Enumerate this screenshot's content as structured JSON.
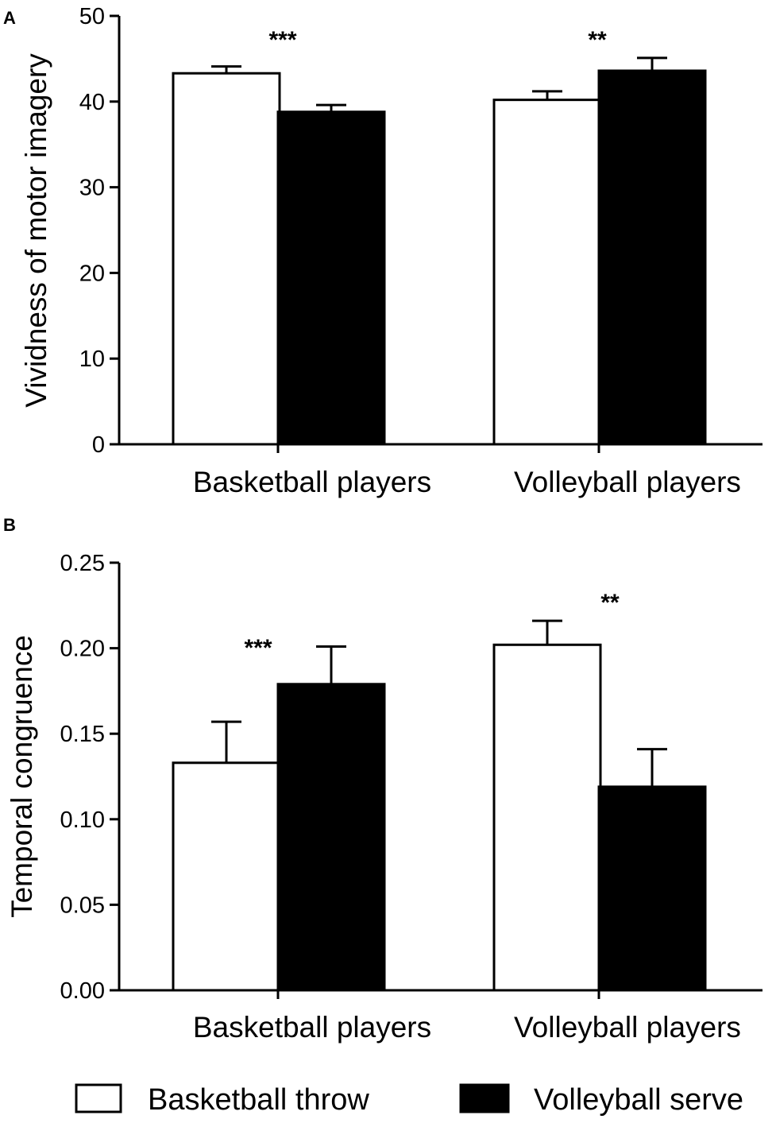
{
  "chart_data": [
    {
      "panel": "A",
      "type": "bar",
      "ylabel": "Vividness of motor imagery",
      "xlabel": "",
      "categories": [
        "Basketball players",
        "Volleyball players"
      ],
      "ylim": [
        0,
        50
      ],
      "yticks": [
        "0",
        "10",
        "20",
        "30",
        "40",
        "50"
      ],
      "series": [
        {
          "name": "Basketball throw",
          "values": [
            43.3,
            40.2
          ],
          "errors": [
            0.8,
            1.0
          ]
        },
        {
          "name": "Volleyball serve",
          "values": [
            38.8,
            43.6
          ],
          "errors": [
            0.8,
            1.5
          ]
        }
      ],
      "significance": [
        "***",
        "**"
      ],
      "grid": false
    },
    {
      "panel": "B",
      "type": "bar",
      "ylabel": "Temporal congruence",
      "xlabel": "",
      "categories": [
        "Basketball players",
        "Volleyball players"
      ],
      "ylim": [
        0,
        0.25
      ],
      "yticks": [
        "0.00",
        "0.05",
        "0.10",
        "0.15",
        "0.20",
        "0.25"
      ],
      "series": [
        {
          "name": "Basketball throw",
          "values": [
            0.133,
            0.202
          ],
          "errors": [
            0.024,
            0.014
          ]
        },
        {
          "name": "Volleyball serve",
          "values": [
            0.179,
            0.119
          ],
          "errors": [
            0.022,
            0.022
          ]
        }
      ],
      "significance": [
        "***",
        "**"
      ],
      "grid": false
    }
  ],
  "legend": {
    "placement": "bottom",
    "items": [
      {
        "label": "Basketball throw",
        "fill": "#ffffff"
      },
      {
        "label": "Volleyball serve",
        "fill": "#000000"
      }
    ]
  }
}
